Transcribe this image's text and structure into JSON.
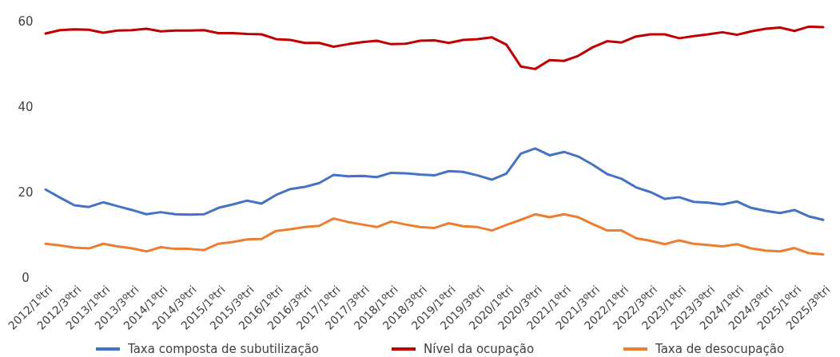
{
  "chart_data": {
    "type": "line",
    "categories": [
      "2012/1ºtri",
      null,
      "2012/3ºtri",
      null,
      "2013/1ºtri",
      null,
      "2013/3ºtri",
      null,
      "2014/1ºtri",
      null,
      "2014/3ºtri",
      null,
      "2015/1ºtri",
      null,
      "2015/3ºtri",
      null,
      "2016/1ºtri",
      null,
      "2016/3ºtri",
      null,
      "2017/1ºtri",
      null,
      "2017/3ºtri",
      null,
      "2018/1ºtri",
      null,
      "2018/3ºtri",
      null,
      "2019/1ºtri",
      null,
      "2019/3ºtri",
      null,
      "2020/1ºtri",
      null,
      "2020/3ºtri",
      null,
      "2021/1ºtri",
      null,
      "2021/3ºtri",
      null,
      "2022/1ºtri",
      null,
      "2022/3ºtri",
      null,
      "2023/1ºtri",
      null,
      "2023/3ºtri",
      null,
      "2024/1ºtri",
      null,
      "2024/3ºtri",
      null,
      "2025/1ºtri",
      null,
      "2025/3ºtri"
    ],
    "series": [
      {
        "name": "Taxa composta de subutilização",
        "color": "#4472c4",
        "values": [
          20.7,
          18.8,
          17.0,
          16.6,
          17.7,
          16.8,
          15.9,
          14.9,
          15.4,
          14.9,
          14.8,
          14.9,
          16.4,
          17.2,
          18.1,
          17.4,
          19.4,
          20.8,
          21.3,
          22.2,
          24.1,
          23.8,
          23.9,
          23.6,
          24.6,
          24.5,
          24.2,
          24.0,
          25.0,
          24.8,
          24.0,
          23.0,
          24.4,
          29.1,
          30.3,
          28.7,
          29.5,
          28.4,
          26.5,
          24.3,
          23.2,
          21.2,
          20.1,
          18.5,
          18.9,
          17.8,
          17.6,
          17.2,
          17.9,
          16.4,
          15.7,
          15.2,
          15.9,
          14.4,
          13.6
        ]
      },
      {
        "name": "Nível da ocupação",
        "color": "#c00000",
        "values": [
          57.2,
          58.0,
          58.2,
          58.1,
          57.4,
          57.9,
          58.0,
          58.3,
          57.7,
          57.9,
          57.9,
          58.0,
          57.3,
          57.3,
          57.1,
          57.0,
          55.9,
          55.7,
          55.0,
          55.0,
          54.1,
          54.7,
          55.2,
          55.5,
          54.7,
          54.8,
          55.5,
          55.6,
          55.0,
          55.7,
          55.9,
          56.3,
          54.6,
          49.5,
          48.9,
          51.0,
          50.8,
          52.0,
          54.0,
          55.4,
          55.1,
          56.5,
          57.0,
          57.0,
          56.1,
          56.6,
          57.0,
          57.5,
          56.9,
          57.7,
          58.3,
          58.6,
          57.8,
          58.8,
          58.7
        ]
      },
      {
        "name": "Taxa de desocupação",
        "color": "#ed7d31",
        "values": [
          8.0,
          7.6,
          7.1,
          6.9,
          8.0,
          7.4,
          6.9,
          6.2,
          7.2,
          6.8,
          6.8,
          6.5,
          8.0,
          8.4,
          9.0,
          9.1,
          11.0,
          11.4,
          11.9,
          12.2,
          13.9,
          13.1,
          12.5,
          11.9,
          13.2,
          12.5,
          11.9,
          11.7,
          12.8,
          12.1,
          11.9,
          11.1,
          12.4,
          13.6,
          14.9,
          14.2,
          14.9,
          14.2,
          12.6,
          11.1,
          11.1,
          9.3,
          8.7,
          7.9,
          8.8,
          8.0,
          7.7,
          7.4,
          7.9,
          6.9,
          6.4,
          6.2,
          7.0,
          5.8,
          5.5
        ]
      }
    ],
    "ylim": [
      0,
      60
    ],
    "yticks": [
      0,
      20,
      40,
      60
    ],
    "legend": "bottom"
  }
}
